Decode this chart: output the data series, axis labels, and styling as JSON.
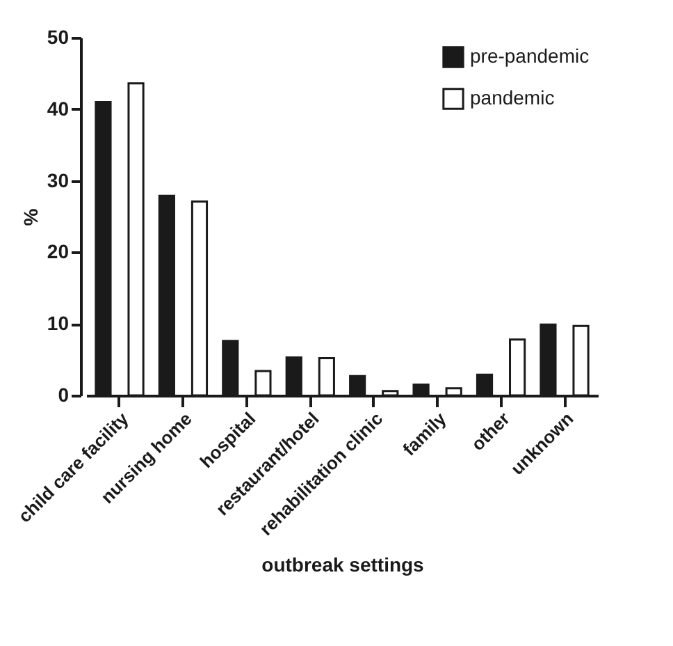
{
  "chart_data": {
    "type": "bar",
    "xlabel": "outbreak settings",
    "ylabel": "%",
    "categories": [
      "child care facility",
      "nursing home",
      "hospital",
      "restaurant/hotel",
      "rehabilitation clinic",
      "family",
      "other",
      "unknown"
    ],
    "series": [
      {
        "name": "pre-pandemic",
        "color": "#1a1a1a",
        "values": [
          41.0,
          27.9,
          7.6,
          5.3,
          2.7,
          1.5,
          2.9,
          9.9
        ]
      },
      {
        "name": "pandemic",
        "color": "#ffffff",
        "values": [
          43.6,
          27.1,
          3.4,
          5.2,
          0.6,
          1.0,
          7.8,
          9.7
        ]
      }
    ],
    "ylim": [
      0,
      50
    ],
    "yticks": [
      0,
      10,
      20,
      30,
      40,
      50
    ],
    "grid": false,
    "legend": "top right"
  }
}
